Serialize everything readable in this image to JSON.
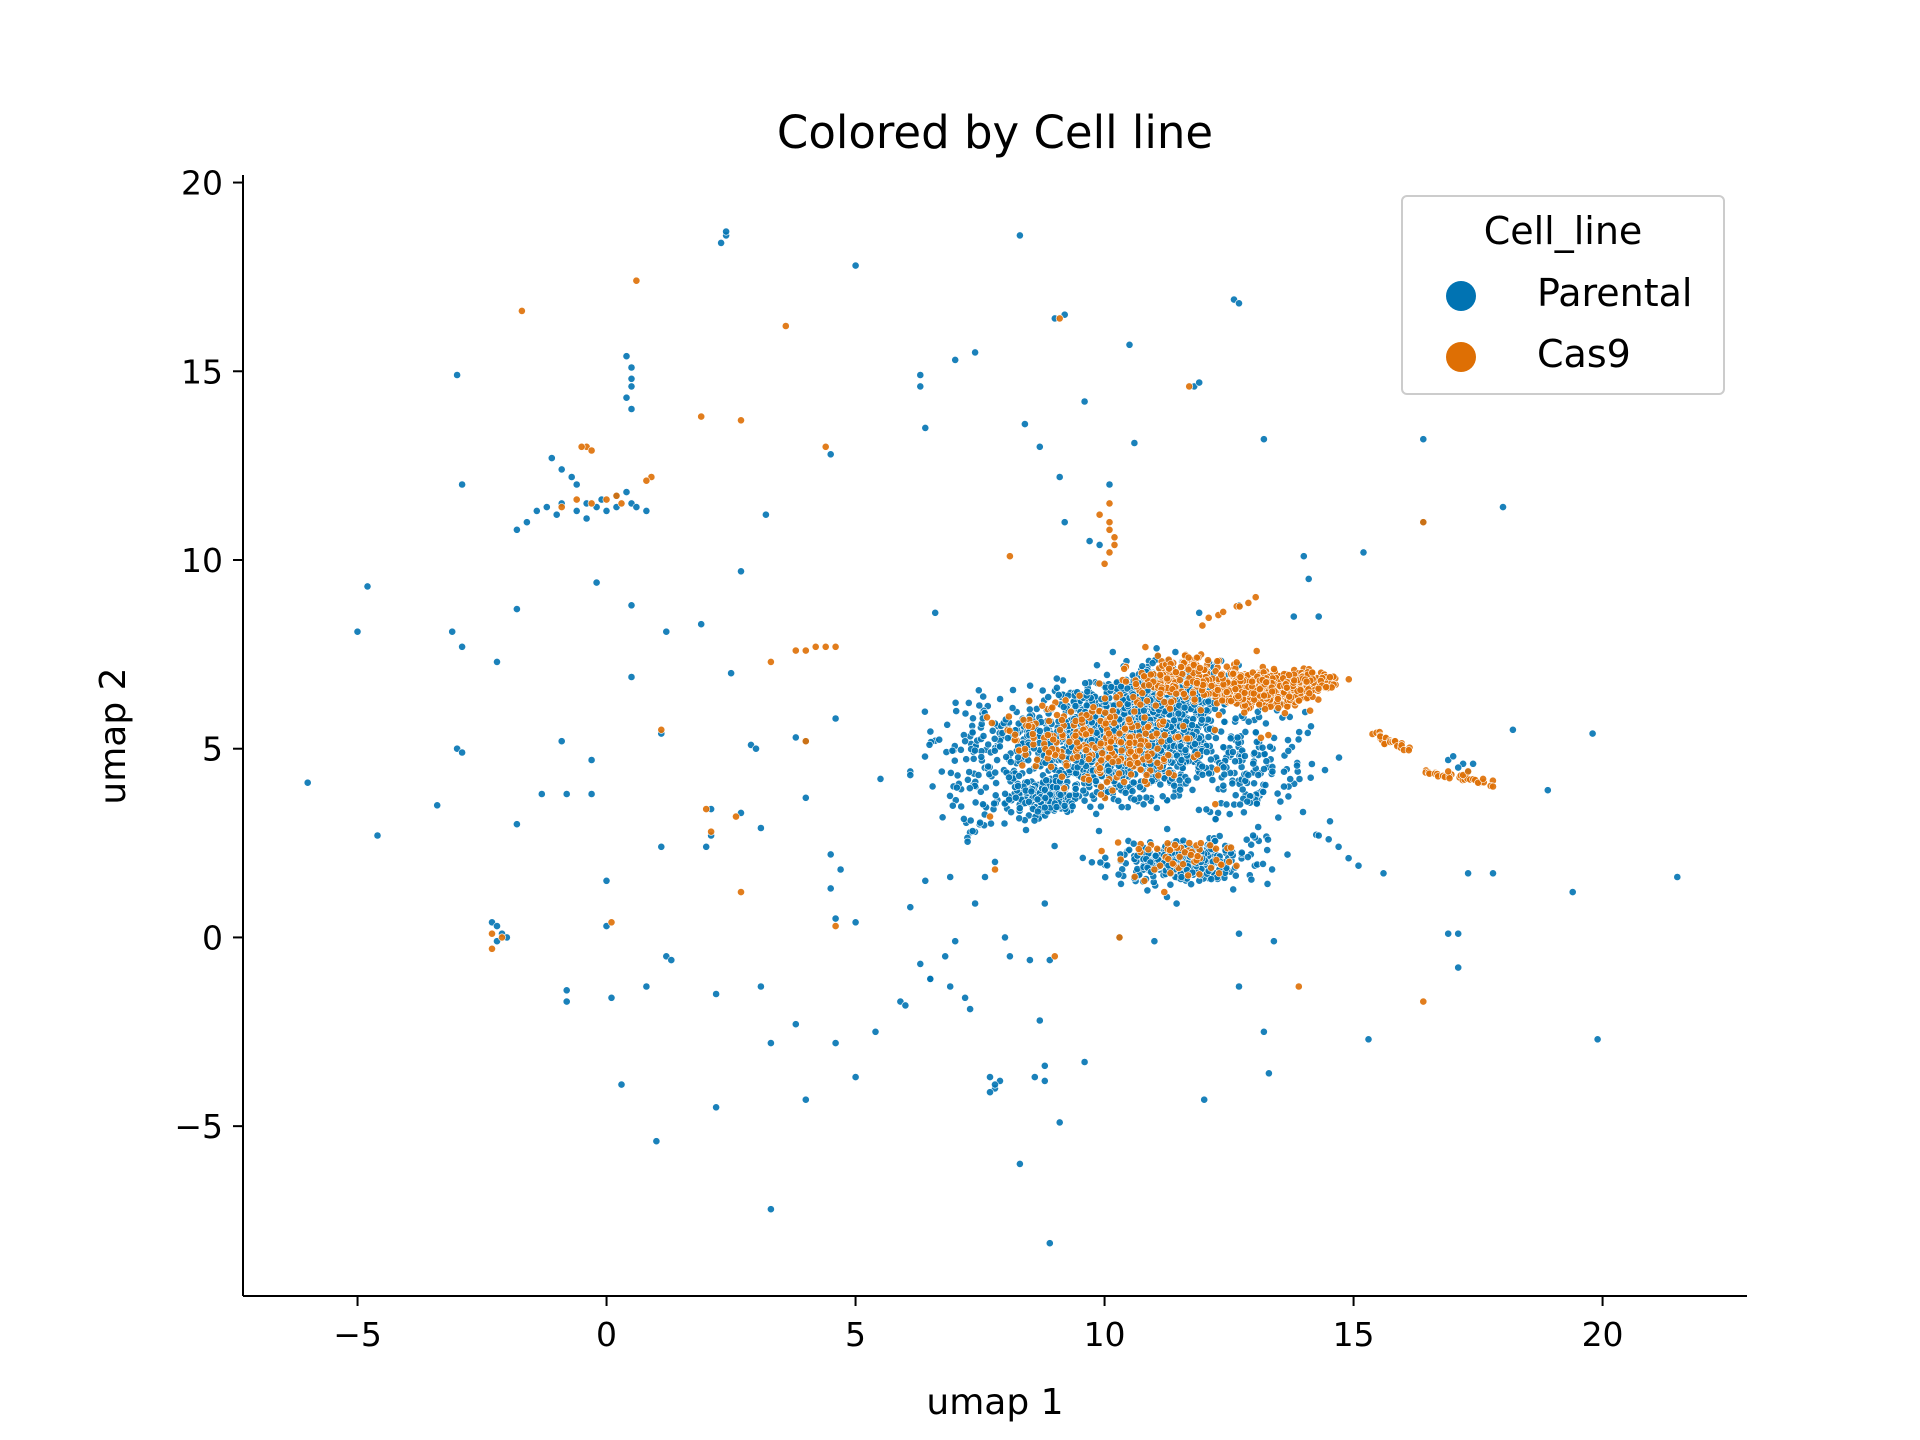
{
  "chart_data": {
    "type": "scatter",
    "title": "Colored by Cell line",
    "xlabel": "umap 1",
    "ylabel": "umap 2",
    "xlim": [
      -7.3,
      22.9
    ],
    "ylim": [
      -9.5,
      20.2
    ],
    "xticks": [
      -5,
      0,
      5,
      10,
      15,
      20
    ],
    "yticks": [
      -5,
      0,
      5,
      10,
      15,
      20
    ],
    "xtick_labels": [
      "−5",
      "0",
      "5",
      "10",
      "15",
      "20"
    ],
    "ytick_labels": [
      "−5",
      "0",
      "5",
      "10",
      "15",
      "20"
    ],
    "grid": false,
    "legend": {
      "title": "Cell_line",
      "placement": "top-right",
      "entries": [
        "Parental",
        "Cas9"
      ]
    },
    "series": [
      {
        "name": "Parental",
        "color": "#0173b2",
        "points": [
          [
            -6.0,
            4.1
          ],
          [
            -5.0,
            8.1
          ],
          [
            -4.6,
            2.7
          ],
          [
            -4.8,
            9.3
          ],
          [
            -3.4,
            3.5
          ],
          [
            -3.1,
            8.1
          ],
          [
            -3.0,
            5.0
          ],
          [
            -2.9,
            4.9
          ],
          [
            -3.0,
            14.9
          ],
          [
            -2.9,
            12.0
          ],
          [
            -2.9,
            7.7
          ],
          [
            -2.2,
            7.3
          ],
          [
            -1.8,
            8.7
          ],
          [
            -1.8,
            3.0
          ],
          [
            -1.3,
            3.8
          ],
          [
            -0.9,
            5.2
          ],
          [
            -0.8,
            3.8
          ],
          [
            -0.3,
            3.8
          ],
          [
            -0.3,
            4.7
          ],
          [
            -0.2,
            9.4
          ],
          [
            0.0,
            1.5
          ],
          [
            0.0,
            0.3
          ],
          [
            0.1,
            -1.6
          ],
          [
            -0.8,
            -1.4
          ],
          [
            -0.8,
            -1.7
          ],
          [
            0.3,
            -3.9
          ],
          [
            0.5,
            6.9
          ],
          [
            0.5,
            8.8
          ],
          [
            1.1,
            2.4
          ],
          [
            1.1,
            5.4
          ],
          [
            1.2,
            8.1
          ],
          [
            1.2,
            -0.5
          ],
          [
            1.3,
            -0.6
          ],
          [
            0.8,
            -1.3
          ],
          [
            1.0,
            -5.4
          ],
          [
            1.9,
            8.3
          ],
          [
            2.0,
            2.4
          ],
          [
            2.1,
            2.7
          ],
          [
            2.1,
            3.4
          ],
          [
            2.2,
            -1.5
          ],
          [
            2.2,
            -4.5
          ],
          [
            2.5,
            7.0
          ],
          [
            2.7,
            9.7
          ],
          [
            2.7,
            3.3
          ],
          [
            2.9,
            5.1
          ],
          [
            3.0,
            5.0
          ],
          [
            3.1,
            2.9
          ],
          [
            3.1,
            -1.3
          ],
          [
            3.2,
            11.2
          ],
          [
            3.3,
            -2.8
          ],
          [
            3.3,
            -7.2
          ],
          [
            3.8,
            5.3
          ],
          [
            3.8,
            -2.3
          ],
          [
            4.0,
            -4.3
          ],
          [
            4.0,
            5.2
          ],
          [
            4.0,
            3.7
          ],
          [
            4.6,
            5.8
          ],
          [
            4.5,
            2.2
          ],
          [
            4.5,
            1.3
          ],
          [
            4.7,
            1.8
          ],
          [
            4.6,
            0.5
          ],
          [
            5.0,
            0.4
          ],
          [
            4.6,
            -2.8
          ],
          [
            5.0,
            -3.7
          ],
          [
            5.0,
            17.8
          ],
          [
            4.5,
            12.8
          ],
          [
            5.4,
            -2.5
          ],
          [
            5.5,
            4.2
          ],
          [
            5.9,
            -1.7
          ],
          [
            6.0,
            -1.8
          ],
          [
            6.1,
            0.8
          ],
          [
            6.1,
            4.4
          ],
          [
            6.3,
            -0.7
          ],
          [
            6.4,
            1.5
          ],
          [
            6.5,
            -1.1
          ],
          [
            6.5,
            -1.1
          ],
          [
            6.6,
            8.6
          ],
          [
            6.3,
            14.9
          ],
          [
            6.3,
            14.6
          ],
          [
            6.8,
            -0.5
          ],
          [
            6.9,
            1.6
          ],
          [
            6.9,
            -1.3
          ],
          [
            7.0,
            -0.1
          ],
          [
            7.2,
            -1.6
          ],
          [
            7.3,
            -1.9
          ],
          [
            7.2,
            5.2
          ],
          [
            7.4,
            15.5
          ],
          [
            7.0,
            15.3
          ],
          [
            8.3,
            18.6
          ],
          [
            8.4,
            13.6
          ],
          [
            8.7,
            13.0
          ],
          [
            8.8,
            0.9
          ],
          [
            8.7,
            -2.2
          ],
          [
            8.8,
            -3.4
          ],
          [
            8.8,
            -3.8
          ],
          [
            8.6,
            -3.7
          ],
          [
            8.9,
            -0.6
          ],
          [
            8.5,
            -0.6
          ],
          [
            9.1,
            -4.9
          ],
          [
            8.3,
            -6.0
          ],
          [
            8.9,
            -8.1
          ],
          [
            9.6,
            -3.3
          ],
          [
            9.0,
            16.4
          ],
          [
            9.2,
            16.5
          ],
          [
            9.6,
            14.2
          ],
          [
            9.1,
            12.2
          ],
          [
            9.2,
            11.0
          ],
          [
            10.1,
            12.0
          ],
          [
            9.7,
            10.5
          ],
          [
            9.9,
            10.4
          ],
          [
            10.5,
            15.7
          ],
          [
            10.6,
            13.1
          ],
          [
            10.3,
            0.0
          ],
          [
            11.0,
            -0.1
          ],
          [
            12.0,
            -4.3
          ],
          [
            11.8,
            14.6
          ],
          [
            11.9,
            14.7
          ],
          [
            12.6,
            16.9
          ],
          [
            12.7,
            16.8
          ],
          [
            13.2,
            13.2
          ],
          [
            13.2,
            -2.5
          ],
          [
            13.3,
            -3.6
          ],
          [
            12.7,
            0.1
          ],
          [
            12.7,
            -1.3
          ],
          [
            13.4,
            -0.1
          ],
          [
            15.2,
            10.2
          ],
          [
            15.3,
            -2.7
          ],
          [
            15.6,
            1.7
          ],
          [
            16.4,
            13.2
          ],
          [
            16.4,
            11.0
          ],
          [
            17.3,
            1.7
          ],
          [
            17.1,
            -0.8
          ],
          [
            16.9,
            0.1
          ],
          [
            17.1,
            0.1
          ],
          [
            17.8,
            1.7
          ],
          [
            18.2,
            5.5
          ],
          [
            18.9,
            3.9
          ],
          [
            19.4,
            1.2
          ],
          [
            19.8,
            5.4
          ],
          [
            19.9,
            -2.7
          ],
          [
            21.5,
            1.6
          ],
          [
            18.0,
            11.4
          ],
          [
            14.0,
            10.1
          ],
          [
            14.1,
            9.5
          ],
          [
            13.8,
            8.5
          ],
          [
            14.3,
            8.5
          ],
          [
            12.7,
            8.8
          ],
          [
            11.9,
            8.6
          ],
          [
            6.4,
            13.5
          ],
          [
            6.1,
            4.3
          ],
          [
            2.3,
            18.4
          ],
          [
            2.4,
            18.6
          ],
          [
            2.4,
            18.7
          ],
          [
            0.4,
            15.4
          ],
          [
            0.5,
            15.1
          ],
          [
            0.5,
            14.8
          ],
          [
            0.5,
            14.6
          ],
          [
            0.4,
            14.3
          ],
          [
            0.5,
            14.0
          ],
          [
            -0.9,
            12.4
          ],
          [
            -0.7,
            12.2
          ],
          [
            -1.1,
            12.7
          ],
          [
            -0.6,
            12.0
          ],
          [
            -1.4,
            11.3
          ],
          [
            -1.6,
            11.0
          ],
          [
            -1.8,
            10.8
          ],
          [
            -0.4,
            11.5
          ],
          [
            -0.1,
            11.6
          ],
          [
            0.2,
            11.7
          ],
          [
            0.4,
            11.8
          ],
          [
            0.2,
            11.4
          ],
          [
            0.5,
            11.5
          ],
          [
            -1.2,
            11.4
          ],
          [
            -1.0,
            11.2
          ],
          [
            -0.6,
            11.3
          ],
          [
            -0.2,
            11.4
          ],
          [
            0.6,
            11.4
          ],
          [
            0.8,
            11.3
          ],
          [
            0.0,
            11.3
          ],
          [
            -0.4,
            11.1
          ],
          [
            -0.9,
            11.5
          ],
          [
            -2.3,
            0.4
          ],
          [
            -2.2,
            0.3
          ],
          [
            -2.1,
            0.1
          ],
          [
            -2.0,
            0.0
          ],
          [
            -2.2,
            -0.1
          ],
          [
            7.7,
            -3.7
          ],
          [
            7.8,
            -4.0
          ],
          [
            7.9,
            -3.8
          ],
          [
            7.7,
            -4.1
          ],
          [
            7.8,
            -3.9
          ],
          [
            14.5,
            2.6
          ],
          [
            14.7,
            2.4
          ],
          [
            14.9,
            2.1
          ],
          [
            15.1,
            1.9
          ],
          [
            14.3,
            2.7
          ],
          [
            16.9,
            4.7
          ],
          [
            17.0,
            4.8
          ],
          [
            17.2,
            4.6
          ],
          [
            17.1,
            4.5
          ],
          [
            17.3,
            4.4
          ],
          [
            17.4,
            4.6
          ],
          [
            8.0,
            0.0
          ],
          [
            8.1,
            -0.5
          ],
          [
            7.6,
            1.6
          ],
          [
            7.4,
            0.9
          ],
          [
            7.8,
            2.0
          ]
        ],
        "clusters": [
          {
            "center": [
              10.3,
              5.2
            ],
            "spread": [
              1.7,
              1.1
            ],
            "count": 1500
          },
          {
            "center": [
              11.4,
              6.6
            ],
            "spread": [
              1.0,
              0.55
            ],
            "count": 480
          },
          {
            "center": [
              11.5,
              2.0
            ],
            "spread": [
              1.1,
              0.45
            ],
            "count": 380
          },
          {
            "center": [
              8.8,
              3.7
            ],
            "spread": [
              0.6,
              0.45
            ],
            "count": 260
          },
          {
            "center": [
              7.6,
              4.6
            ],
            "spread": [
              0.8,
              1.5
            ],
            "count": 130
          },
          {
            "center": [
              13.0,
              4.3
            ],
            "spread": [
              1.0,
              1.6
            ],
            "count": 150
          }
        ]
      },
      {
        "name": "Cas9",
        "color": "#de6f04",
        "points": [
          [
            -1.7,
            16.6
          ],
          [
            0.6,
            17.4
          ],
          [
            3.6,
            16.2
          ],
          [
            1.9,
            13.8
          ],
          [
            2.7,
            13.7
          ],
          [
            4.4,
            13.0
          ],
          [
            0.9,
            12.2
          ],
          [
            0.8,
            12.1
          ],
          [
            -0.4,
            13.0
          ],
          [
            -0.5,
            13.0
          ],
          [
            -0.3,
            12.9
          ],
          [
            0.2,
            11.7
          ],
          [
            0.3,
            11.5
          ],
          [
            0.0,
            11.6
          ],
          [
            -0.6,
            11.6
          ],
          [
            -0.3,
            11.5
          ],
          [
            -0.9,
            11.4
          ],
          [
            4.0,
            7.6
          ],
          [
            4.2,
            7.7
          ],
          [
            4.4,
            7.7
          ],
          [
            4.6,
            7.7
          ],
          [
            3.8,
            7.6
          ],
          [
            3.3,
            7.3
          ],
          [
            4.0,
            5.2
          ],
          [
            1.1,
            5.5
          ],
          [
            2.0,
            3.4
          ],
          [
            2.1,
            2.8
          ],
          [
            2.6,
            3.2
          ],
          [
            2.7,
            1.2
          ],
          [
            0.1,
            0.4
          ],
          [
            -2.3,
            -0.3
          ],
          [
            -2.3,
            0.1
          ],
          [
            -2.1,
            0.0
          ],
          [
            4.6,
            0.3
          ],
          [
            8.1,
            10.1
          ],
          [
            10.1,
            11.0
          ],
          [
            10.2,
            10.6
          ],
          [
            10.1,
            10.2
          ],
          [
            10.0,
            9.9
          ],
          [
            10.1,
            10.8
          ],
          [
            10.2,
            10.4
          ],
          [
            9.9,
            11.2
          ],
          [
            10.1,
            11.5
          ],
          [
            9.1,
            16.4
          ],
          [
            11.7,
            14.6
          ],
          [
            13.9,
            -1.3
          ],
          [
            16.4,
            -1.7
          ],
          [
            16.4,
            11.0
          ],
          [
            16.9,
            4.4
          ],
          [
            17.2,
            4.3
          ],
          [
            17.5,
            4.1
          ],
          [
            17.8,
            4.0
          ],
          [
            17.6,
            4.2
          ],
          [
            17.3,
            4.4
          ],
          [
            10.3,
            0.0
          ],
          [
            9.0,
            -0.5
          ],
          [
            11.2,
            1.2
          ],
          [
            11.0,
            1.8
          ],
          [
            10.8,
            1.5
          ],
          [
            7.8,
            1.8
          ],
          [
            7.7,
            3.2
          ],
          [
            12.5,
            2.0
          ],
          [
            12.3,
            1.7
          ]
        ],
        "line_segments": [
          {
            "from": [
              15.4,
              5.4
            ],
            "to": [
              16.1,
              5.0
            ],
            "count": 26
          },
          {
            "from": [
              16.4,
              4.4
            ],
            "to": [
              17.7,
              4.1
            ],
            "count": 28
          },
          {
            "from": [
              12.0,
              8.4
            ],
            "to": [
              13.0,
              9.0
            ],
            "count": 8
          }
        ],
        "clusters": [
          {
            "center": [
              13.2,
              6.6
            ],
            "spread": [
              0.75,
              0.35
            ],
            "count": 700
          },
          {
            "center": [
              14.0,
              6.8
            ],
            "spread": [
              0.45,
              0.25
            ],
            "count": 170
          },
          {
            "center": [
              11.6,
              6.8
            ],
            "spread": [
              0.9,
              0.5
            ],
            "count": 210
          },
          {
            "center": [
              10.0,
              5.2
            ],
            "spread": [
              1.6,
              1.0
            ],
            "count": 260
          },
          {
            "center": [
              11.5,
              2.2
            ],
            "spread": [
              0.9,
              0.4
            ],
            "count": 50
          }
        ]
      }
    ]
  }
}
